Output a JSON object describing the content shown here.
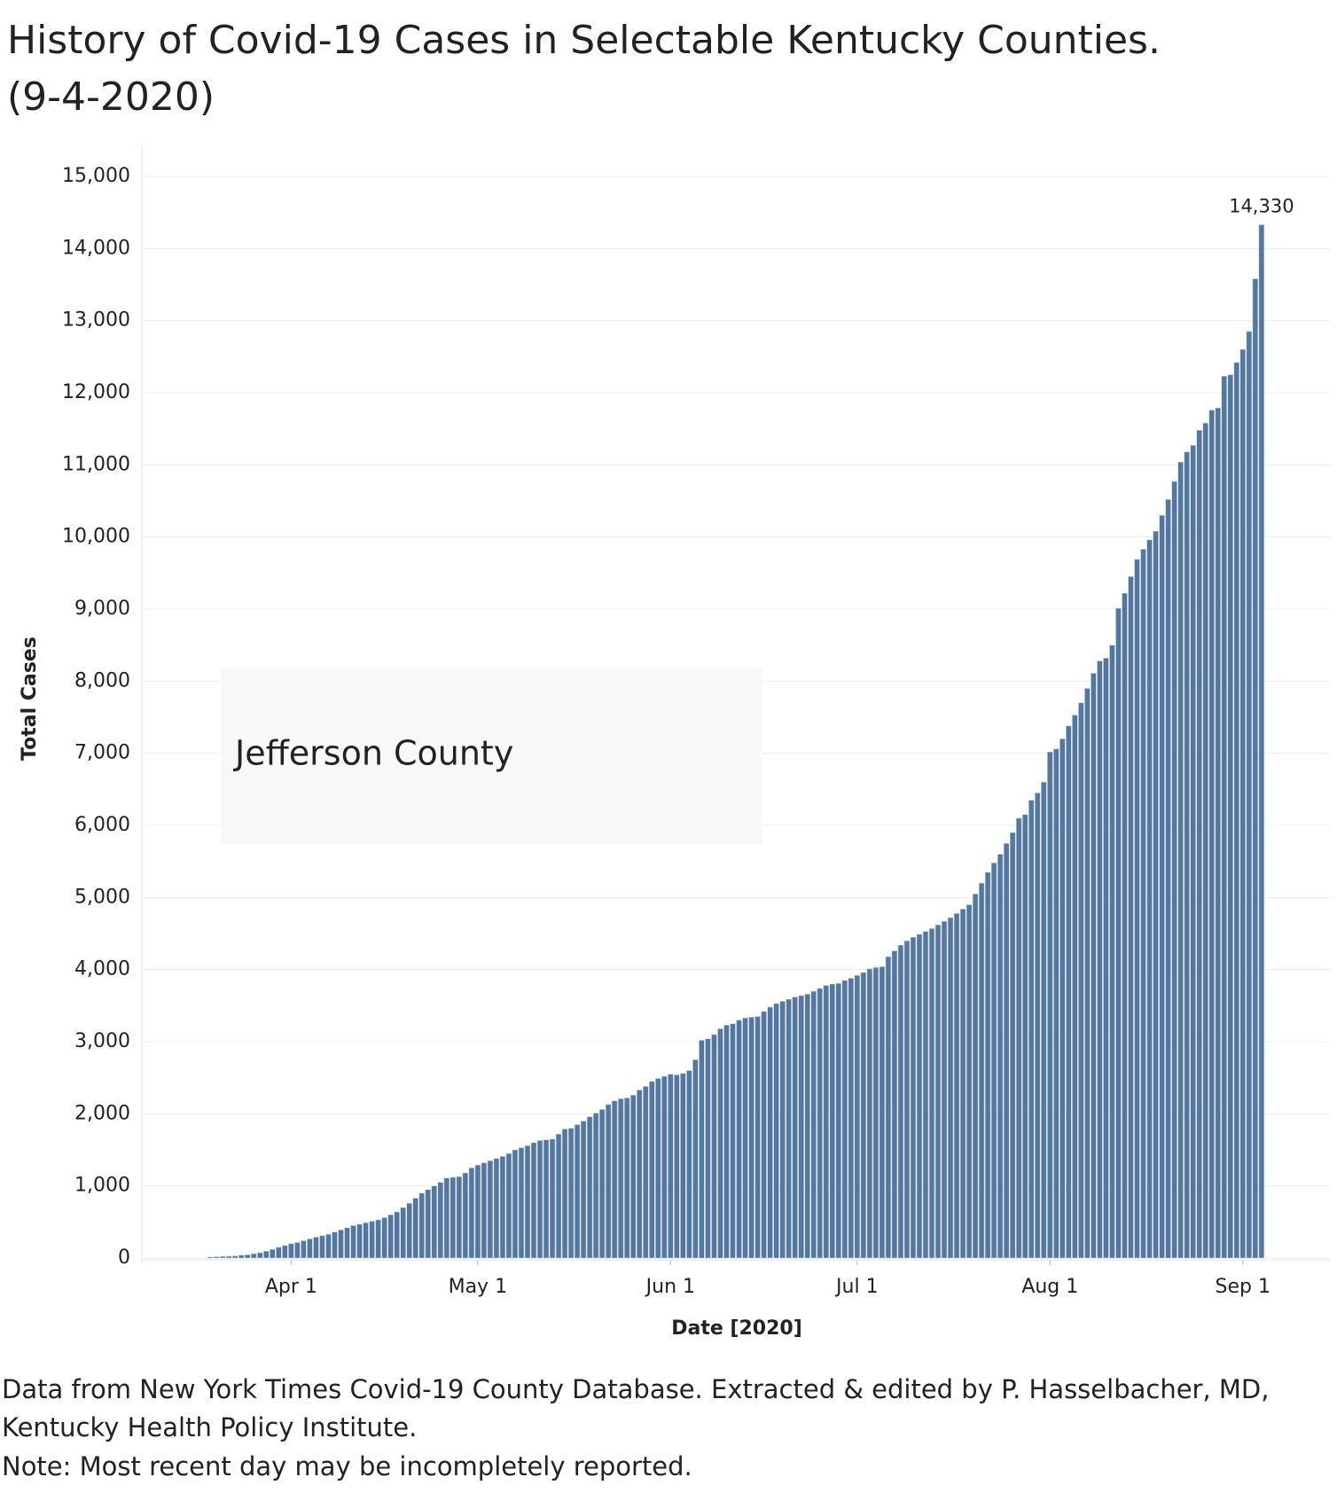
{
  "chart_data": {
    "type": "bar",
    "title": [
      "History of Covid-19 Cases in Selectable Kentucky Counties.",
      "(9-4-2020)"
    ],
    "county": "Jefferson County",
    "x_label": "Date [2020]",
    "y_label": "Total Cases",
    "notes": [
      "Data from New York Times Covid-19 County Database.  Extracted & edited by P. Hasselbacher, MD,",
      "Kentucky Health Policy Institute.",
      "Note: Most recent day may be incompletely reported."
    ],
    "color": "#53779f",
    "grid": true,
    "xlim": [
      "2020-03-08",
      "2020-09-15"
    ],
    "xticks": [
      {
        "value": "2020-04-01",
        "label": "Apr 1"
      },
      {
        "value": "2020-05-01",
        "label": "May 1"
      },
      {
        "value": "2020-06-01",
        "label": "Jun 1"
      },
      {
        "value": "2020-07-01",
        "label": "Jul 1"
      },
      {
        "value": "2020-08-01",
        "label": "Aug 1"
      },
      {
        "value": "2020-09-01",
        "label": "Sep 1"
      }
    ],
    "ylim": [
      0,
      15000
    ],
    "yticks": [
      0,
      {
        "value": 1000,
        "label": "1,000"
      },
      {
        "value": 2000,
        "label": "2,000"
      },
      {
        "value": 3000,
        "label": "3,000"
      },
      {
        "value": 4000,
        "label": "4,000"
      },
      {
        "value": 5000,
        "label": "5,000"
      },
      {
        "value": 6000,
        "label": "6,000"
      },
      {
        "value": 7000,
        "label": "7,000"
      },
      {
        "value": 8000,
        "label": "8,000"
      },
      {
        "value": 9000,
        "label": "9,000"
      },
      {
        "value": 10000,
        "label": "10,000"
      },
      {
        "value": 11000,
        "label": "11,000"
      },
      {
        "value": 12000,
        "label": "12,000"
      },
      {
        "value": 13000,
        "label": "13,000"
      },
      {
        "value": 14000,
        "label": "14,000"
      },
      {
        "value": 15000,
        "label": "15,000"
      }
    ],
    "x": [
      "2020-03-19",
      "2020-03-20",
      "2020-03-21",
      "2020-03-22",
      "2020-03-23",
      "2020-03-24",
      "2020-03-25",
      "2020-03-26",
      "2020-03-27",
      "2020-03-28",
      "2020-03-29",
      "2020-03-30",
      "2020-03-31",
      "2020-04-01",
      "2020-04-02",
      "2020-04-03",
      "2020-04-04",
      "2020-04-05",
      "2020-04-06",
      "2020-04-07",
      "2020-04-08",
      "2020-04-09",
      "2020-04-10",
      "2020-04-11",
      "2020-04-12",
      "2020-04-13",
      "2020-04-14",
      "2020-04-15",
      "2020-04-16",
      "2020-04-17",
      "2020-04-18",
      "2020-04-19",
      "2020-04-20",
      "2020-04-21",
      "2020-04-22",
      "2020-04-23",
      "2020-04-24",
      "2020-04-25",
      "2020-04-26",
      "2020-04-27",
      "2020-04-28",
      "2020-04-29",
      "2020-04-30",
      "2020-05-01",
      "2020-05-02",
      "2020-05-03",
      "2020-05-04",
      "2020-05-05",
      "2020-05-06",
      "2020-05-07",
      "2020-05-08",
      "2020-05-09",
      "2020-05-10",
      "2020-05-11",
      "2020-05-12",
      "2020-05-13",
      "2020-05-14",
      "2020-05-15",
      "2020-05-16",
      "2020-05-17",
      "2020-05-18",
      "2020-05-19",
      "2020-05-20",
      "2020-05-21",
      "2020-05-22",
      "2020-05-23",
      "2020-05-24",
      "2020-05-25",
      "2020-05-26",
      "2020-05-27",
      "2020-05-28",
      "2020-05-29",
      "2020-05-30",
      "2020-05-31",
      "2020-06-01",
      "2020-06-02",
      "2020-06-03",
      "2020-06-04",
      "2020-06-05",
      "2020-06-06",
      "2020-06-07",
      "2020-06-08",
      "2020-06-09",
      "2020-06-10",
      "2020-06-11",
      "2020-06-12",
      "2020-06-13",
      "2020-06-14",
      "2020-06-15",
      "2020-06-16",
      "2020-06-17",
      "2020-06-18",
      "2020-06-19",
      "2020-06-20",
      "2020-06-21",
      "2020-06-22",
      "2020-06-23",
      "2020-06-24",
      "2020-06-25",
      "2020-06-26",
      "2020-06-27",
      "2020-06-28",
      "2020-06-29",
      "2020-06-30",
      "2020-07-01",
      "2020-07-02",
      "2020-07-03",
      "2020-07-04",
      "2020-07-05",
      "2020-07-06",
      "2020-07-07",
      "2020-07-08",
      "2020-07-09",
      "2020-07-10",
      "2020-07-11",
      "2020-07-12",
      "2020-07-13",
      "2020-07-14",
      "2020-07-15",
      "2020-07-16",
      "2020-07-17",
      "2020-07-18",
      "2020-07-19",
      "2020-07-20",
      "2020-07-21",
      "2020-07-22",
      "2020-07-23",
      "2020-07-24",
      "2020-07-25",
      "2020-07-26",
      "2020-07-27",
      "2020-07-28",
      "2020-07-29",
      "2020-07-30",
      "2020-07-31",
      "2020-08-01",
      "2020-08-02",
      "2020-08-03",
      "2020-08-04",
      "2020-08-05",
      "2020-08-06",
      "2020-08-07",
      "2020-08-08",
      "2020-08-09",
      "2020-08-10",
      "2020-08-11",
      "2020-08-12",
      "2020-08-13",
      "2020-08-14",
      "2020-08-15",
      "2020-08-16",
      "2020-08-17",
      "2020-08-18",
      "2020-08-19",
      "2020-08-20",
      "2020-08-21",
      "2020-08-22",
      "2020-08-23",
      "2020-08-24",
      "2020-08-25",
      "2020-08-26",
      "2020-08-27",
      "2020-08-28",
      "2020-08-29",
      "2020-08-30",
      "2020-08-31",
      "2020-09-01",
      "2020-09-02",
      "2020-09-03",
      "2020-09-04"
    ],
    "values": [
      15,
      18,
      22,
      25,
      30,
      40,
      45,
      60,
      75,
      95,
      120,
      150,
      175,
      200,
      215,
      240,
      265,
      290,
      310,
      330,
      360,
      390,
      420,
      450,
      470,
      490,
      510,
      530,
      560,
      600,
      640,
      700,
      760,
      830,
      900,
      950,
      1000,
      1050,
      1110,
      1120,
      1130,
      1180,
      1250,
      1290,
      1320,
      1350,
      1380,
      1410,
      1450,
      1500,
      1530,
      1560,
      1600,
      1630,
      1640,
      1650,
      1720,
      1790,
      1800,
      1850,
      1900,
      1960,
      2010,
      2060,
      2130,
      2180,
      2210,
      2220,
      2260,
      2330,
      2380,
      2450,
      2490,
      2520,
      2550,
      2540,
      2560,
      2600,
      2750,
      3020,
      3040,
      3100,
      3180,
      3230,
      3250,
      3300,
      3330,
      3340,
      3350,
      3420,
      3480,
      3530,
      3560,
      3590,
      3620,
      3640,
      3660,
      3700,
      3740,
      3780,
      3800,
      3810,
      3850,
      3880,
      3920,
      3960,
      4010,
      4030,
      4040,
      4180,
      4260,
      4340,
      4400,
      4450,
      4490,
      4530,
      4570,
      4620,
      4670,
      4720,
      4780,
      4840,
      4900,
      5050,
      5200,
      5350,
      5480,
      5600,
      5750,
      5900,
      6100,
      6150,
      6350,
      6450,
      6600,
      7020,
      7060,
      7200,
      7380,
      7530,
      7700,
      7900,
      8110,
      8280,
      8320,
      8500,
      9010,
      9220,
      9450,
      9690,
      9830,
      9960,
      10080,
      10300,
      10520,
      10770,
      11040,
      11180,
      11270,
      11480,
      11580,
      11760,
      11790,
      12230,
      12250,
      12420,
      12600,
      12850,
      13580,
      14330
    ],
    "value_labels": [
      null,
      null,
      null,
      null,
      null,
      null,
      null,
      null,
      null,
      null,
      null,
      null,
      null,
      null,
      null,
      null,
      null,
      null,
      null,
      null,
      null,
      null,
      null,
      null,
      null,
      null,
      null,
      null,
      null,
      null,
      null,
      null,
      null,
      null,
      null,
      null,
      null,
      null,
      null,
      null,
      null,
      null,
      null,
      null,
      null,
      null,
      null,
      null,
      null,
      null,
      null,
      null,
      null,
      null,
      null,
      null,
      null,
      null,
      null,
      null,
      null,
      null,
      null,
      null,
      null,
      null,
      null,
      null,
      null,
      null,
      null,
      null,
      null,
      null,
      null,
      null,
      null,
      null,
      null,
      null,
      null,
      null,
      null,
      null,
      null,
      null,
      null,
      null,
      null,
      null,
      null,
      null,
      null,
      null,
      null,
      null,
      null,
      null,
      null,
      null,
      null,
      null,
      null,
      null,
      null,
      null,
      null,
      null,
      null,
      null,
      null,
      null,
      null,
      null,
      null,
      null,
      null,
      null,
      null,
      null,
      null,
      null,
      null,
      null,
      null,
      null,
      null,
      null,
      null,
      null,
      null,
      null,
      null,
      null,
      null,
      null,
      null,
      null,
      null,
      null,
      null,
      null,
      null,
      null,
      null,
      null,
      null,
      null,
      null,
      null,
      null,
      null,
      null,
      null,
      null,
      null,
      null,
      null,
      null,
      null,
      null,
      null,
      null,
      null,
      null,
      null,
      null,
      null,
      null,
      "14,330"
    ]
  }
}
